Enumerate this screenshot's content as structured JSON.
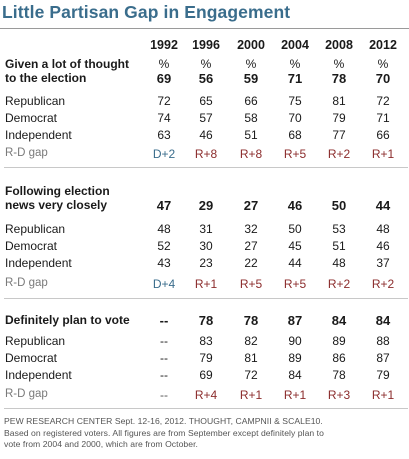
{
  "title": "Little Partisan Gap in Engagement",
  "years": [
    "1992",
    "1996",
    "2000",
    "2004",
    "2008",
    "2012"
  ],
  "sections": [
    {
      "heading": [
        "Given a lot of thought",
        "to the election"
      ],
      "pct_marks": [
        "%",
        "%",
        "%",
        "%",
        "%",
        "%"
      ],
      "total": [
        "69",
        "56",
        "59",
        "71",
        "78",
        "70"
      ],
      "rows": [
        {
          "label": "Republican",
          "values": [
            "72",
            "65",
            "66",
            "75",
            "81",
            "72"
          ]
        },
        {
          "label": "Democrat",
          "values": [
            "74",
            "57",
            "58",
            "70",
            "79",
            "71"
          ]
        },
        {
          "label": "Independent",
          "values": [
            "63",
            "46",
            "51",
            "68",
            "77",
            "66"
          ]
        }
      ],
      "gap": {
        "label": "R-D gap",
        "values": [
          "D+2",
          "R+8",
          "R+8",
          "R+5",
          "R+2",
          "R+1"
        ]
      }
    },
    {
      "heading": [
        "Following election",
        "news very closely"
      ],
      "total": [
        "47",
        "29",
        "27",
        "46",
        "50",
        "44"
      ],
      "rows": [
        {
          "label": "Republican",
          "values": [
            "48",
            "31",
            "32",
            "50",
            "53",
            "48"
          ]
        },
        {
          "label": "Democrat",
          "values": [
            "52",
            "30",
            "27",
            "45",
            "51",
            "46"
          ]
        },
        {
          "label": "Independent",
          "values": [
            "43",
            "23",
            "22",
            "44",
            "48",
            "37"
          ]
        }
      ],
      "gap": {
        "label": "R-D gap",
        "values": [
          "D+4",
          "R+1",
          "R+5",
          "R+5",
          "R+2",
          "R+2"
        ]
      }
    },
    {
      "heading": [
        "Definitely plan to vote"
      ],
      "total": [
        "--",
        "78",
        "78",
        "87",
        "84",
        "84"
      ],
      "rows": [
        {
          "label": "Republican",
          "values": [
            "--",
            "83",
            "82",
            "90",
            "89",
            "88"
          ]
        },
        {
          "label": "Democrat",
          "values": [
            "--",
            "79",
            "81",
            "89",
            "86",
            "87"
          ]
        },
        {
          "label": "Independent",
          "values": [
            "--",
            "69",
            "72",
            "84",
            "78",
            "79"
          ]
        }
      ],
      "gap": {
        "label": "R-D gap",
        "values": [
          "--",
          "R+4",
          "R+1",
          "R+1",
          "R+3",
          "R+1"
        ]
      }
    }
  ],
  "footer": [
    "PEW RESEARCH CENTER Sept. 12-16, 2012. THOUGHT, CAMPNII & SCALE10.",
    "Based on registered voters. All figures are from September except definitely plan to",
    "vote from 2004 and 2000, which are from October."
  ],
  "colors": {
    "title": "#3a6d8c",
    "dem_gap": "#3a6d8c",
    "rep_gap": "#8c2d2d"
  }
}
